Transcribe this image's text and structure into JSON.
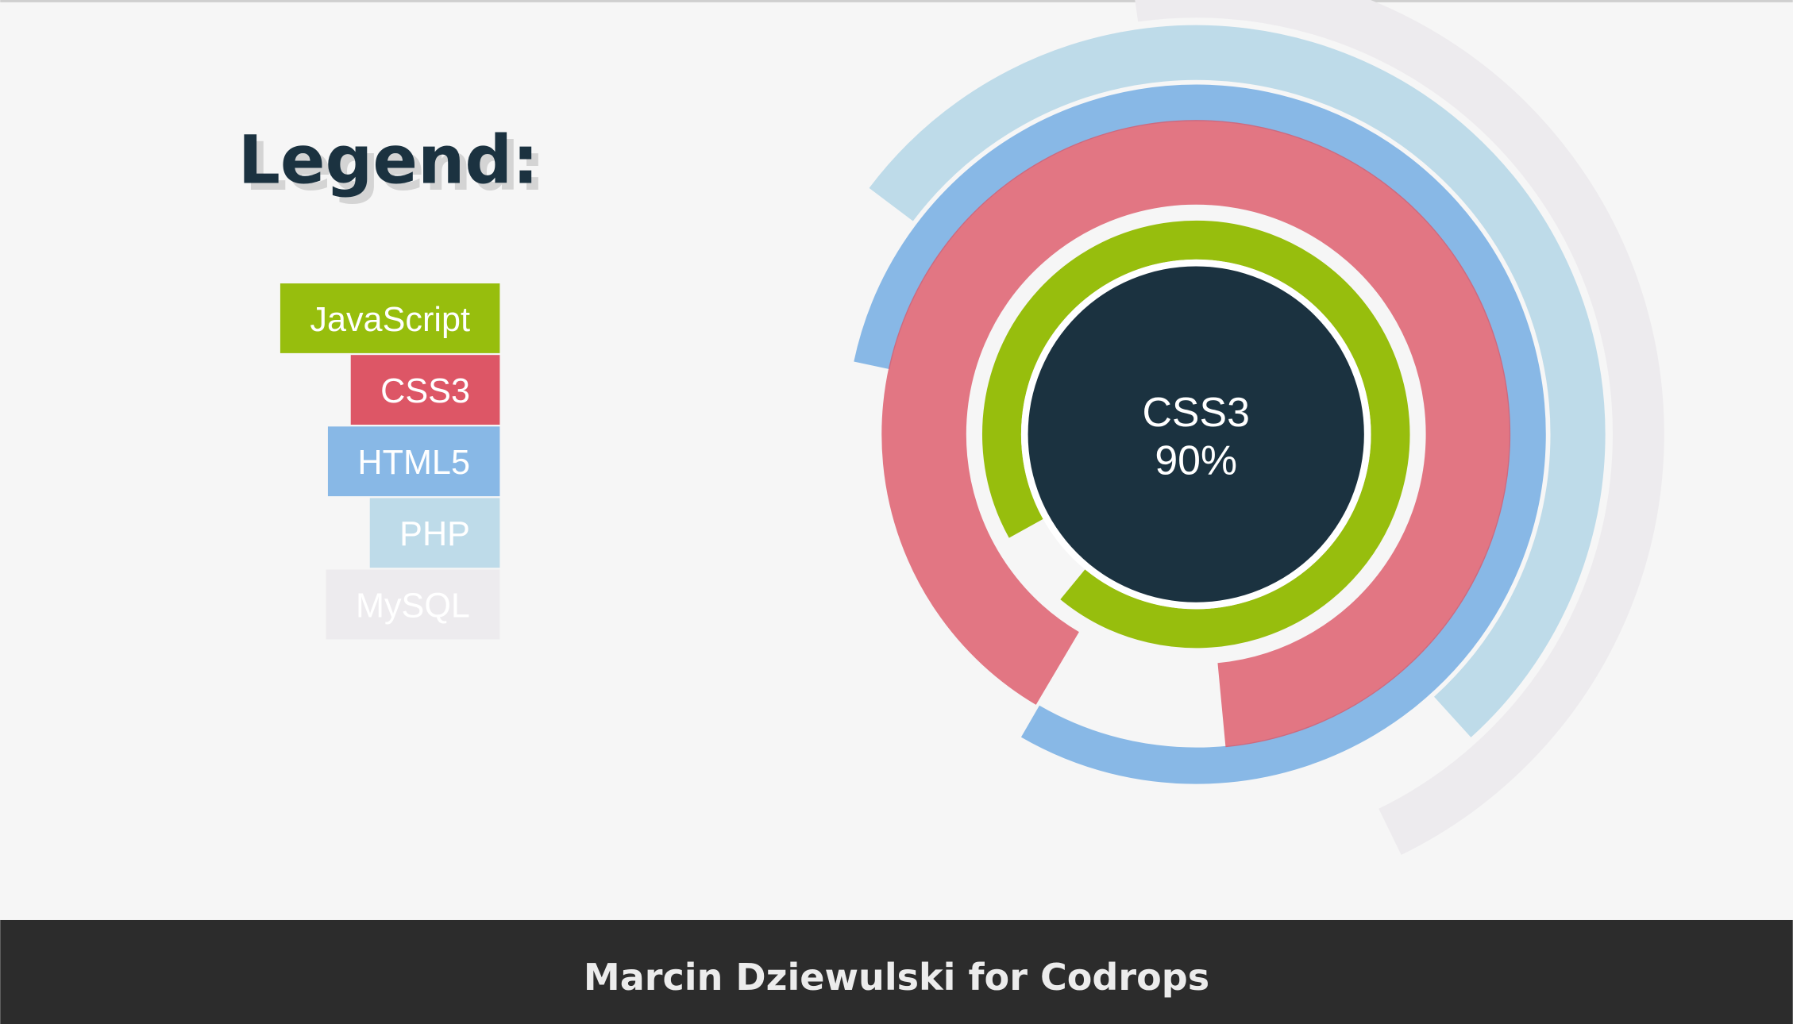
{
  "title": "Legend:",
  "chart_data": {
    "type": "radial",
    "categories": [
      "JavaScript",
      "CSS3",
      "HTML5",
      "PHP",
      "MySQL"
    ],
    "values": [
      94,
      90,
      80,
      53,
      45
    ],
    "value_labels": [
      null,
      "90%",
      null,
      null,
      null
    ],
    "colors": [
      "#97be0d",
      "#dd5666",
      "#88b8e6",
      "#bedbe9",
      "#edebee"
    ],
    "highlight": 1
  },
  "footer": "Marcin Dziewulski for Codrops"
}
